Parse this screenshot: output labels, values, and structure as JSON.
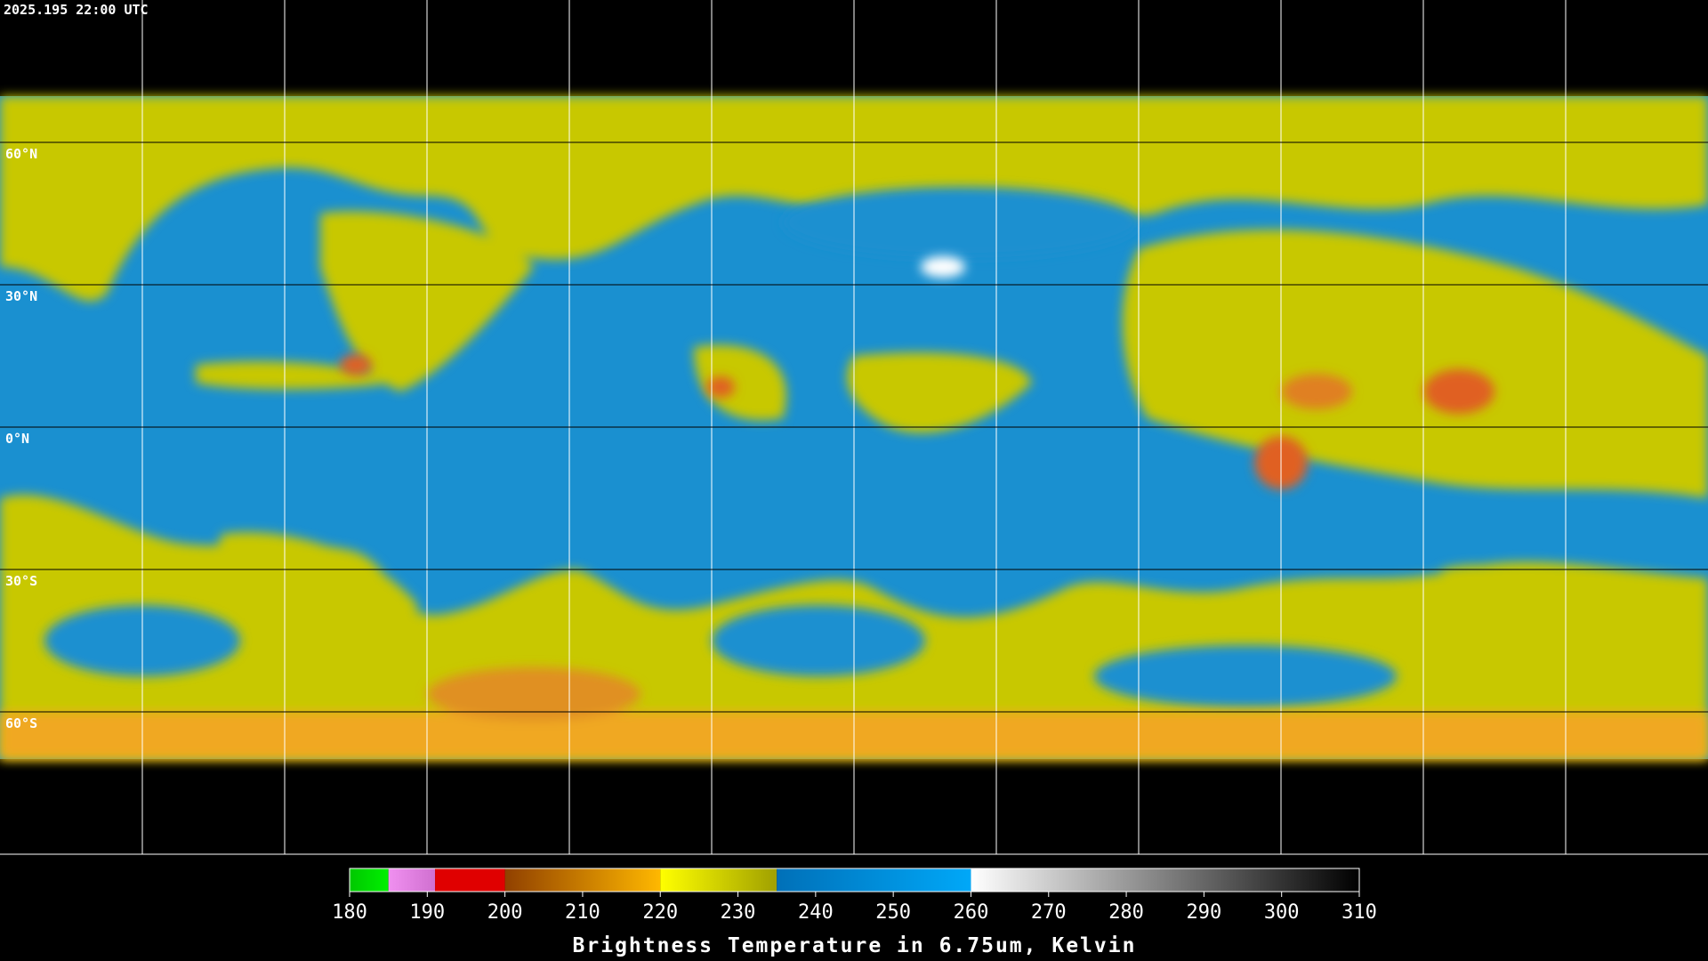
{
  "timestamp": "2025.195 22:00 UTC",
  "map": {
    "grid": true,
    "xlim": [
      -180,
      180
    ],
    "ylim": [
      -90,
      90
    ],
    "lonticks": [
      -150,
      -120,
      -90,
      -60,
      -30,
      0,
      30,
      60,
      90,
      120,
      150
    ],
    "latticks": [
      {
        "value": 60,
        "label": "60°N"
      },
      {
        "value": 30,
        "label": "30°N"
      },
      {
        "value": 0,
        "label": "0°N"
      },
      {
        "value": -30,
        "label": "30°S"
      },
      {
        "value": -60,
        "label": "60°S"
      }
    ]
  },
  "colorbar": {
    "title": "Brightness Temperature in 6.75um, Kelvin",
    "range": [
      180,
      310
    ],
    "ticks": [
      180,
      190,
      200,
      210,
      220,
      230,
      240,
      250,
      260,
      270,
      280,
      290,
      300,
      310
    ],
    "segments": [
      {
        "from": 180,
        "to": 185,
        "colors": [
          "#00c800",
          "#00f000"
        ]
      },
      {
        "from": 185,
        "to": 191,
        "colors": [
          "#f090f0",
          "#d070d0"
        ]
      },
      {
        "from": 191,
        "to": 200,
        "colors": [
          "#e00000",
          "#e00000"
        ]
      },
      {
        "from": 200,
        "to": 220,
        "colors": [
          "#904000",
          "#ffb800"
        ]
      },
      {
        "from": 220,
        "to": 235,
        "colors": [
          "#ffff00",
          "#a0a000"
        ]
      },
      {
        "from": 235,
        "to": 260,
        "colors": [
          "#0070b8",
          "#00a8f8"
        ]
      },
      {
        "from": 260,
        "to": 310,
        "colors": [
          "#ffffff",
          "#000000"
        ]
      }
    ]
  }
}
